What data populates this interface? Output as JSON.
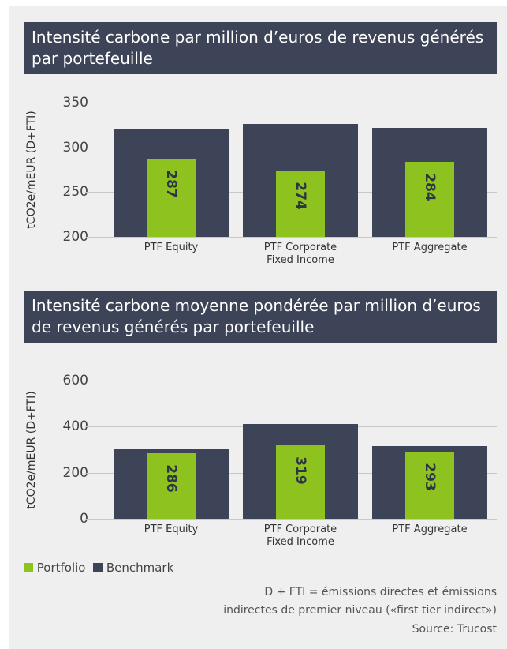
{
  "chart_data": [
    {
      "type": "bar",
      "title": "Intensité carbone par million d’euros de revenus générés par portefeuille",
      "ylabel": "tCO2e/mEUR (D+FTI)",
      "categories": [
        "PTF Equity",
        "PTF Corporate Fixed Income",
        "PTF Aggregate"
      ],
      "series": [
        {
          "name": "Portfolio",
          "color": "#8dc21f",
          "values": [
            287,
            274,
            284
          ]
        },
        {
          "name": "Benchmark",
          "color": "#3d4458",
          "values": [
            321,
            326,
            322
          ]
        }
      ],
      "ylim": [
        200,
        350
      ],
      "yticks": [
        200,
        250,
        300,
        350
      ],
      "grid": true
    },
    {
      "type": "bar",
      "title": "Intensité carbone moyenne pondérée par million d’euros de revenus générés par portefeuille",
      "ylabel": "tCO2e/mEUR (D+FTI)",
      "categories": [
        "PTF Equity",
        "PTF Corporate Fixed Income",
        "PTF Aggregate"
      ],
      "series": [
        {
          "color": "#8dc21f",
          "values": [
            286,
            319,
            293
          ]
        },
        {
          "color": "#3d4458",
          "values": [
            303,
            410,
            316
          ]
        }
      ],
      "ylim": [
        0,
        600
      ],
      "yticks": [
        0,
        200,
        400,
        600
      ],
      "grid": true
    }
  ],
  "footnote": [
    "D + FTI = émissions directes et émissions",
    "indirectes de premier niveau («first tier indirect»)"
  ],
  "source": "Source: Trucost"
}
